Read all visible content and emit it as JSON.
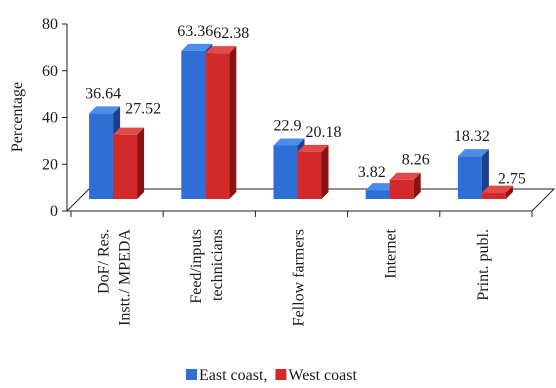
{
  "chart_data": {
    "type": "bar",
    "title": "",
    "xlabel": "",
    "ylabel": "Percentage",
    "ylim": [
      0,
      80
    ],
    "yticks": [
      "0",
      "20",
      "40",
      "60",
      "80"
    ],
    "categories": [
      [
        "DoF/ Res.",
        "Instt./ MPEDA"
      ],
      [
        "Feed/inputs",
        "technicians"
      ],
      [
        "Fellow farmers"
      ],
      [
        "Internet"
      ],
      [
        "Print. publ."
      ]
    ],
    "series": [
      {
        "name": "East coast,",
        "values": [
          36.64,
          63.36,
          22.9,
          3.82,
          18.32
        ],
        "labels": [
          "36.64",
          "63.36",
          "22.9",
          "3.82",
          "18.32"
        ],
        "color": "#2f6fd4",
        "side_color": "#1a3f8c",
        "top_color": "#4d8ce8"
      },
      {
        "name": "West coast",
        "values": [
          27.52,
          62.38,
          20.18,
          8.26,
          2.75
        ],
        "labels": [
          "27.52",
          "62.38",
          "20.18",
          "8.26",
          "2.75"
        ],
        "color": "#d22a2a",
        "side_color": "#8a1212",
        "top_color": "#e24a4a"
      }
    ],
    "grid": false,
    "legend_position": "bottom"
  }
}
